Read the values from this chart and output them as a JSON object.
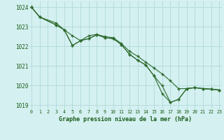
{
  "line1_x": [
    0,
    1,
    3,
    4,
    5,
    6,
    7,
    8,
    9,
    10,
    11,
    12,
    13,
    14,
    15,
    16,
    17,
    18,
    19,
    20,
    21,
    22,
    23
  ],
  "line1_y": [
    1024.0,
    1023.5,
    1023.2,
    1022.85,
    1022.55,
    1022.3,
    1022.55,
    1022.62,
    1022.5,
    1022.45,
    1022.15,
    1021.75,
    1021.5,
    1021.2,
    1020.9,
    1020.6,
    1020.25,
    1019.85,
    1019.85,
    1019.9,
    1019.85,
    1019.82,
    1019.78
  ],
  "line2_x": [
    0,
    1,
    3,
    4,
    5,
    6,
    7,
    8,
    9,
    10,
    11,
    12,
    13,
    14,
    15,
    16,
    17,
    18,
    19,
    20,
    21,
    22,
    23
  ],
  "line2_y": [
    1024.0,
    1023.5,
    1023.1,
    1022.85,
    1022.05,
    1022.3,
    1022.4,
    1022.6,
    1022.45,
    1022.4,
    1022.1,
    1021.6,
    1021.3,
    1021.05,
    1020.5,
    1019.6,
    1019.15,
    1019.3,
    1019.85,
    1019.9,
    1019.85,
    1019.82,
    1019.78
  ],
  "line3_x": [
    0,
    1,
    3,
    4,
    5,
    6,
    7,
    8,
    9,
    10,
    11,
    12,
    13,
    14,
    15,
    16,
    17,
    18,
    19,
    20,
    21,
    22,
    23
  ],
  "line3_y": [
    1024.0,
    1023.5,
    1023.1,
    1022.85,
    1022.05,
    1022.3,
    1022.4,
    1022.6,
    1022.45,
    1022.4,
    1022.1,
    1021.6,
    1021.3,
    1021.05,
    1020.5,
    1020.0,
    1019.15,
    1019.3,
    1019.85,
    1019.9,
    1019.85,
    1019.82,
    1019.78
  ],
  "hours": [
    0,
    1,
    2,
    3,
    4,
    5,
    6,
    7,
    8,
    9,
    10,
    11,
    12,
    13,
    14,
    15,
    16,
    17,
    18,
    19,
    20,
    21,
    22,
    23
  ],
  "ylim": [
    1018.8,
    1024.3
  ],
  "yticks": [
    1019,
    1020,
    1021,
    1022,
    1023,
    1024
  ],
  "line_color": "#2d6a2d",
  "bg_color": "#d4f0f0",
  "grid_color": "#aad4d4",
  "xlabel": "Graphe pression niveau de la mer (hPa)",
  "xlabel_color": "#1a5c1a",
  "tick_label_color": "#1a5c1a"
}
